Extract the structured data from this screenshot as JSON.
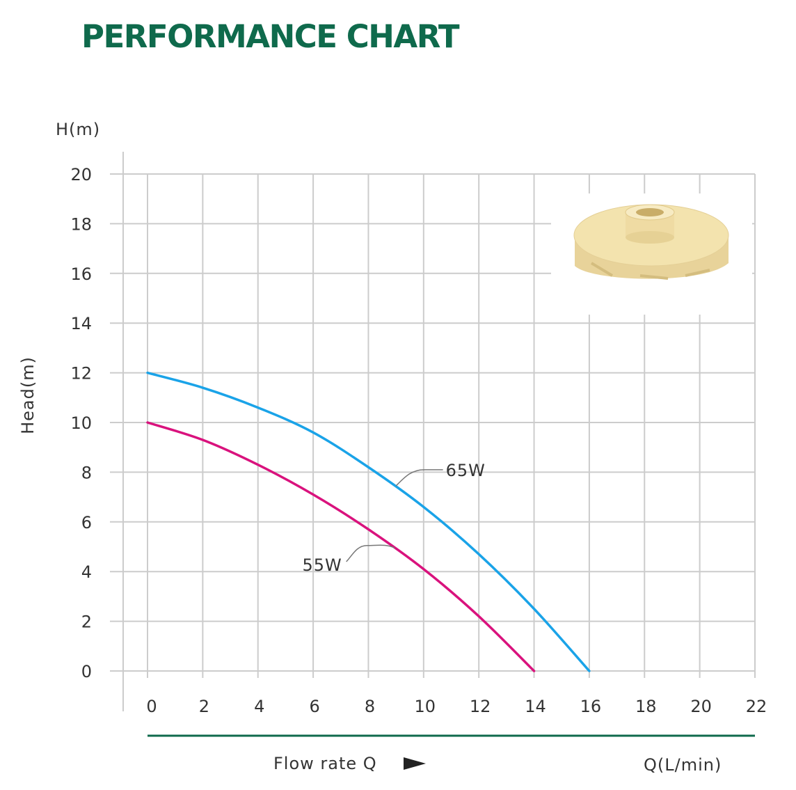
{
  "page": {
    "title": "PERFORMANCE CHART"
  },
  "chart_data": {
    "type": "line",
    "title": "PERFORMANCE CHART",
    "xlabel": "Flow rate Q",
    "xunit": "Q(L/min)",
    "ylabel": "Head(m)",
    "yunit": "H(m)",
    "xlim": [
      0,
      22
    ],
    "ylim": [
      0,
      20
    ],
    "xticks": [
      0,
      2,
      4,
      6,
      8,
      10,
      12,
      14,
      16,
      18,
      20,
      22
    ],
    "yticks": [
      0,
      2,
      4,
      6,
      8,
      10,
      12,
      14,
      16,
      18,
      20
    ],
    "grid": true,
    "series": [
      {
        "name": "65W",
        "color": "#1aa3e8",
        "x": [
          0,
          2,
          4,
          6,
          8,
          10,
          12,
          14,
          16
        ],
        "y": [
          12.0,
          11.4,
          10.6,
          9.6,
          8.2,
          6.6,
          4.7,
          2.5,
          0
        ]
      },
      {
        "name": "55W",
        "color": "#d9127d",
        "x": [
          0,
          2,
          4,
          6,
          8,
          10,
          12,
          14
        ],
        "y": [
          10.0,
          9.3,
          8.3,
          7.1,
          5.7,
          4.1,
          2.2,
          0
        ]
      }
    ],
    "image_inset": {
      "icon": "impeller-image",
      "color": "#f3e3ae"
    },
    "arrow_icon": "right-arrow-icon",
    "colors": {
      "title": "#0f6a4c",
      "grid": "#cccccc",
      "baseline": "#0f6a4c"
    }
  }
}
